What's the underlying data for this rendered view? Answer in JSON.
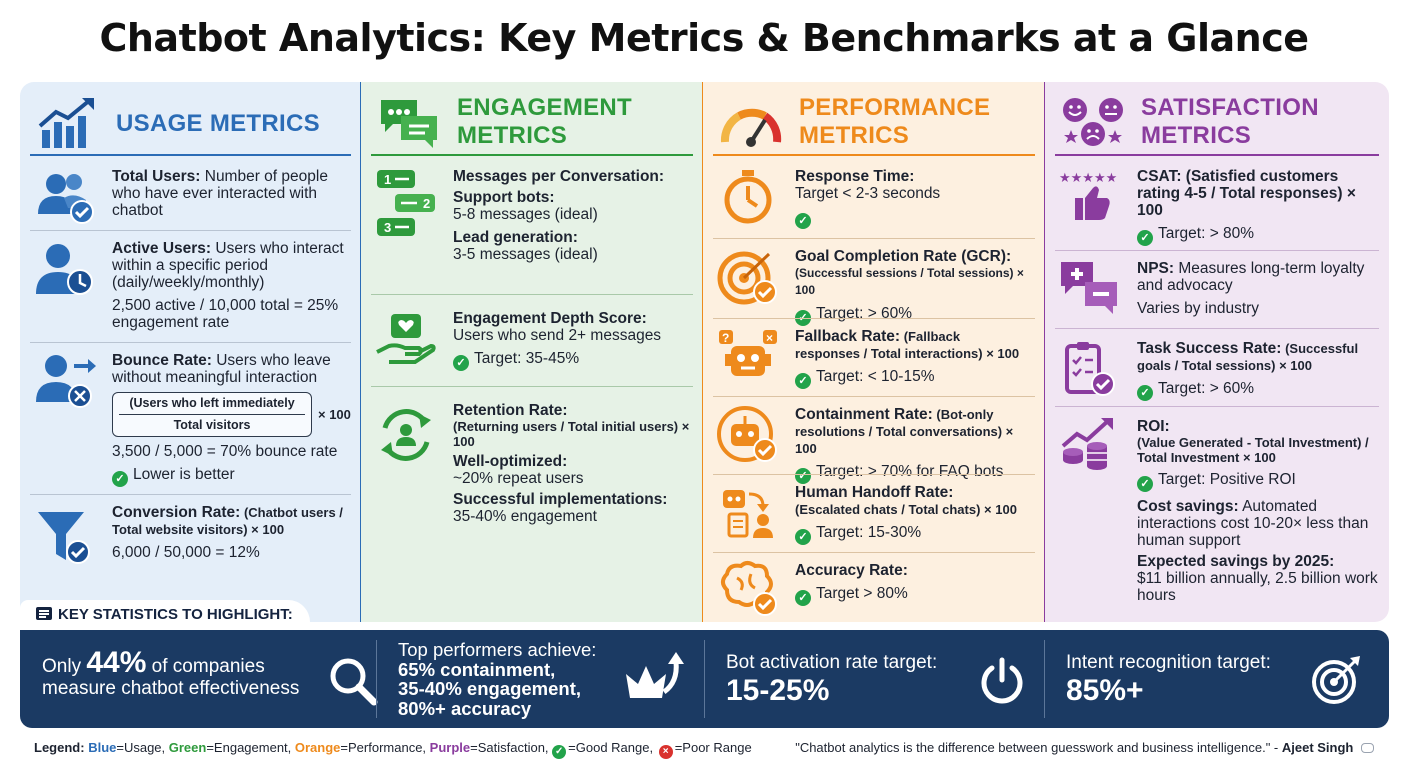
{
  "title": "Chatbot Analytics: Key Metrics & Benchmarks at a Glance",
  "colors": {
    "usage": "#2b6cb6",
    "engagement": "#2e9a3c",
    "performance": "#ee8a1c",
    "satisfaction": "#8a3c9e",
    "good": "#22a34a",
    "poor": "#d9322e",
    "banner": "#1b3a63"
  },
  "usage": {
    "heading": "USAGE METRICS",
    "icon": "growth-chart-icon",
    "total_users": {
      "icon": "users-check-icon",
      "title": "Total Users:",
      "desc": " Number of people who have ever interacted with chatbot"
    },
    "active_users": {
      "icon": "user-clock-icon",
      "title": "Active Users:",
      "desc": " Users who interact within a specific period (daily/weekly/monthly)",
      "example": "2,500 active / 10,000 total = 25% engagement rate"
    },
    "bounce_rate": {
      "icon": "user-exit-icon",
      "title": "Bounce Rate:",
      "desc": " Users who leave without meaningful interaction",
      "numerator": "(Users who left immediately",
      "denominator": "Total visitors",
      "times": "× 100",
      "example": "3,500 / 5,000 = 70% bounce rate",
      "note": "Lower is better"
    },
    "conversion_rate": {
      "icon": "funnel-check-icon",
      "title": "Conversion Rate:",
      "formula": " (Chatbot users / Total website visitors) × 100",
      "example": "6,000 / 50,000 = 12%"
    }
  },
  "engagement": {
    "heading_line1": "ENGAGEMENT",
    "heading_line2": "METRICS",
    "icon": "chat-bubbles-icon",
    "messages": {
      "icon": "numbered-messages-icon",
      "title": "Messages per Conversation:",
      "support_label": "Support bots:",
      "support_value": "5-8 messages (ideal)",
      "lead_label": "Lead generation:",
      "lead_value": "3-5 messages (ideal)"
    },
    "depth": {
      "icon": "hand-heart-icon",
      "title": "Engagement Depth Score:",
      "desc": "Users who send 2+ messages",
      "target": "Target: 35-45%"
    },
    "retention": {
      "icon": "user-cycle-icon",
      "title": "Retention Rate:",
      "formula": "(Returning users / Total initial users) × 100",
      "opt_label": "Well-optimized:",
      "opt_value": "~20% repeat users",
      "impl_label": "Successful implementations:",
      "impl_value": "35-40% engagement"
    }
  },
  "performance": {
    "heading_line1": "PERFORMANCE",
    "heading_line2": "METRICS",
    "icon": "speedometer-icon",
    "response": {
      "icon": "stopwatch-icon",
      "title": "Response Time:",
      "desc": "Target < 2-3 seconds"
    },
    "gcr": {
      "icon": "target-check-icon",
      "title": "Goal Completion Rate (GCR):",
      "formula": "(Successful sessions / Total sessions) × 100",
      "target": "Target: > 60%"
    },
    "fallback": {
      "icon": "confused-robot-icon",
      "title": "Fallback Rate:",
      "formula_a": " (Fallback",
      "formula_b": "responses / Total interactions) × 100",
      "target": "Target: < 10-15%"
    },
    "containment": {
      "icon": "robot-check-icon",
      "title": "Containment Rate:",
      "formula_a": " (Bot-only",
      "formula_b": "resolutions / Total conversations) × 100",
      "target": "Target: > 70% for FAQ bots"
    },
    "handoff": {
      "icon": "bot-to-human-icon",
      "title": "Human Handoff Rate:",
      "formula": "(Escalated chats / Total chats) × 100",
      "target": "Target: 15-30%"
    },
    "accuracy": {
      "icon": "brain-check-icon",
      "title": "Accuracy Rate:",
      "target": "Target > 80%"
    }
  },
  "satisfaction": {
    "heading_line1": "SATISFACTION",
    "heading_line2": "METRICS",
    "icon": "faces-stars-icon",
    "csat": {
      "icon": "stars-thumbs-up-icon",
      "title": "CSAT: (Satisfied customers rating 4-5 / Total responses) × 100",
      "target": "Target: > 80%"
    },
    "nps": {
      "icon": "plus-minus-chat-icon",
      "title": "NPS:",
      "desc": " Measures long-term loyalty and advocacy",
      "note": "Varies by industry"
    },
    "task": {
      "icon": "checklist-icon",
      "title": "Task Success Rate:",
      "formula": " (Successful goals / Total sessions) × 100",
      "target": "Target: > 60%"
    },
    "roi": {
      "icon": "coins-growth-icon",
      "title": "ROI:",
      "formula": "(Value Generated - Total Investment) / Total Investment × 100",
      "target": "Target: Positive ROI",
      "savings_label": "Cost savings:",
      "savings_desc": " Automated interactions cost 10-20× less than human support",
      "expected_label": "Expected savings by 2025:",
      "expected_desc": "$11 billion annually, 2.5 billion work hours"
    }
  },
  "key_stats": {
    "heading": "KEY STATISTICS TO HIGHLIGHT:",
    "stat1_pre": "Only ",
    "stat1_big": "44%",
    "stat1_post": " of companies",
    "stat1_line2": "measure chatbot effectiveness",
    "stat2_line1": "Top performers achieve:",
    "stat2_line2": "65% containment,",
    "stat2_line3": "35-40% engagement,",
    "stat2_line4": "80%+ accuracy",
    "stat3_label": "Bot activation rate target:",
    "stat3_big": "15-25%",
    "stat4_label": "Intent recognition target:",
    "stat4_big": "85%+"
  },
  "legend": {
    "label": "Legend:",
    "blue": "Blue",
    "blue_desc": "=Usage, ",
    "green": "Green",
    "green_desc": "=Engagement, ",
    "orange": "Orange",
    "orange_desc": "=Performance, ",
    "purple": "Purple",
    "purple_desc": "=Satisfaction, ",
    "good_desc": "=Good Range, ",
    "poor_desc": "=Poor Range"
  },
  "quote": {
    "text": "\"Chatbot analytics is the difference between guesswork and business intelligence.\" - ",
    "author": "Ajeet Singh"
  }
}
